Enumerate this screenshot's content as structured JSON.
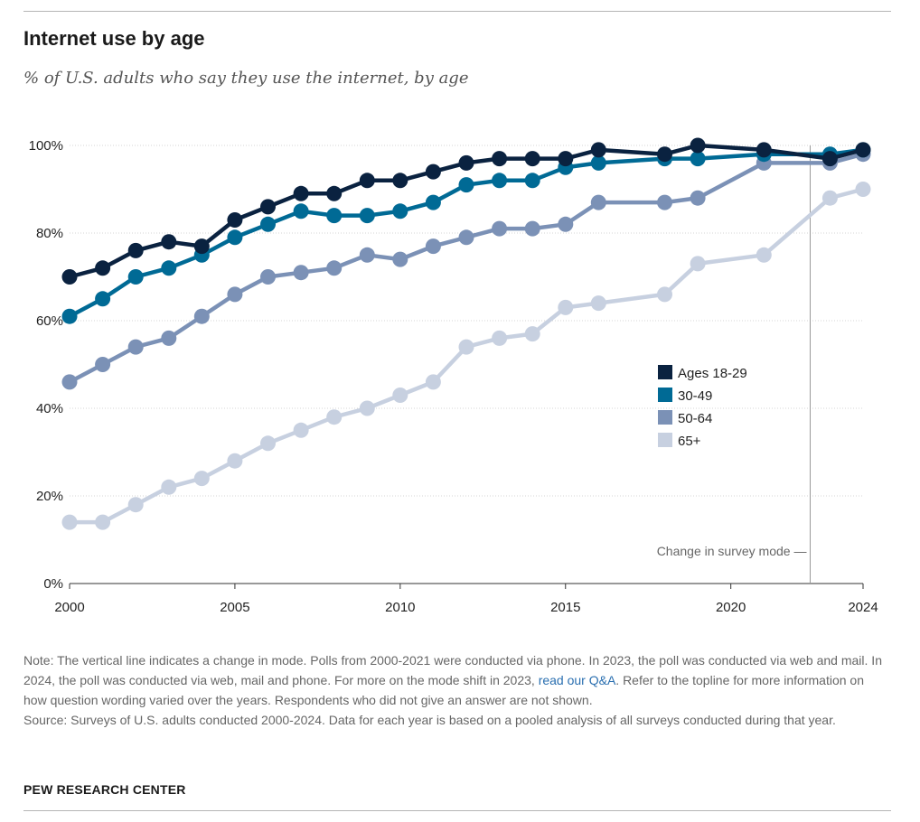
{
  "chart_data": {
    "type": "line",
    "title": "Internet use by age",
    "subtitle": "% of U.S. adults who say they use the internet, by age",
    "xlabel": "",
    "ylabel": "",
    "xlim": [
      2000,
      2024
    ],
    "ylim": [
      0,
      100
    ],
    "x_ticks": [
      2000,
      2005,
      2010,
      2015,
      2020,
      2024
    ],
    "y_ticks": [
      0,
      20,
      40,
      60,
      80,
      100
    ],
    "y_tick_labels": [
      "0%",
      "20%",
      "40%",
      "60%",
      "80%",
      "100%"
    ],
    "grid": "horizontal",
    "legend_position": "center-right",
    "x": [
      2000,
      2001,
      2002,
      2003,
      2004,
      2005,
      2006,
      2007,
      2008,
      2009,
      2010,
      2011,
      2012,
      2013,
      2014,
      2015,
      2016,
      2018,
      2019,
      2021,
      2023,
      2024
    ],
    "series": [
      {
        "name": "Ages 18-29",
        "color": "#0a2240",
        "values": [
          70,
          72,
          76,
          78,
          77,
          83,
          86,
          89,
          89,
          92,
          92,
          94,
          96,
          97,
          97,
          97,
          99,
          98,
          100,
          99,
          97,
          99
        ]
      },
      {
        "name": "30-49",
        "color": "#006a95",
        "values": [
          61,
          65,
          70,
          72,
          75,
          79,
          82,
          85,
          84,
          84,
          85,
          87,
          91,
          92,
          92,
          95,
          96,
          97,
          97,
          98,
          98,
          99
        ]
      },
      {
        "name": "50-64",
        "color": "#7b91b6",
        "values": [
          46,
          50,
          54,
          56,
          61,
          66,
          70,
          71,
          72,
          75,
          74,
          77,
          79,
          81,
          81,
          82,
          87,
          87,
          88,
          96,
          96,
          98
        ]
      },
      {
        "name": "65+",
        "color": "#c7d0e0",
        "values": [
          14,
          14,
          18,
          22,
          24,
          28,
          32,
          35,
          38,
          40,
          43,
          46,
          54,
          56,
          57,
          63,
          64,
          66,
          73,
          75,
          88,
          90
        ]
      }
    ],
    "annotation": {
      "text": "Change in survey mode",
      "x": 2022.4
    }
  },
  "notes": {
    "note_part1": "Note: The vertical line indicates a change in mode. Polls from 2000-2021 were conducted via phone. In 2023, the poll was conducted via web and mail. In 2024, the poll was conducted via web, mail and phone. For more on the mode shift in 2023, ",
    "note_link": "read our Q&A",
    "note_part2": ". Refer to the topline for more information on how question wording varied over the years. Respondents who did not give an answer are not shown.",
    "source": "Source: Surveys of U.S. adults conducted 2000-2024. Data for each year is based on a pooled analysis of all surveys conducted during that year."
  },
  "brand": "PEW RESEARCH CENTER"
}
